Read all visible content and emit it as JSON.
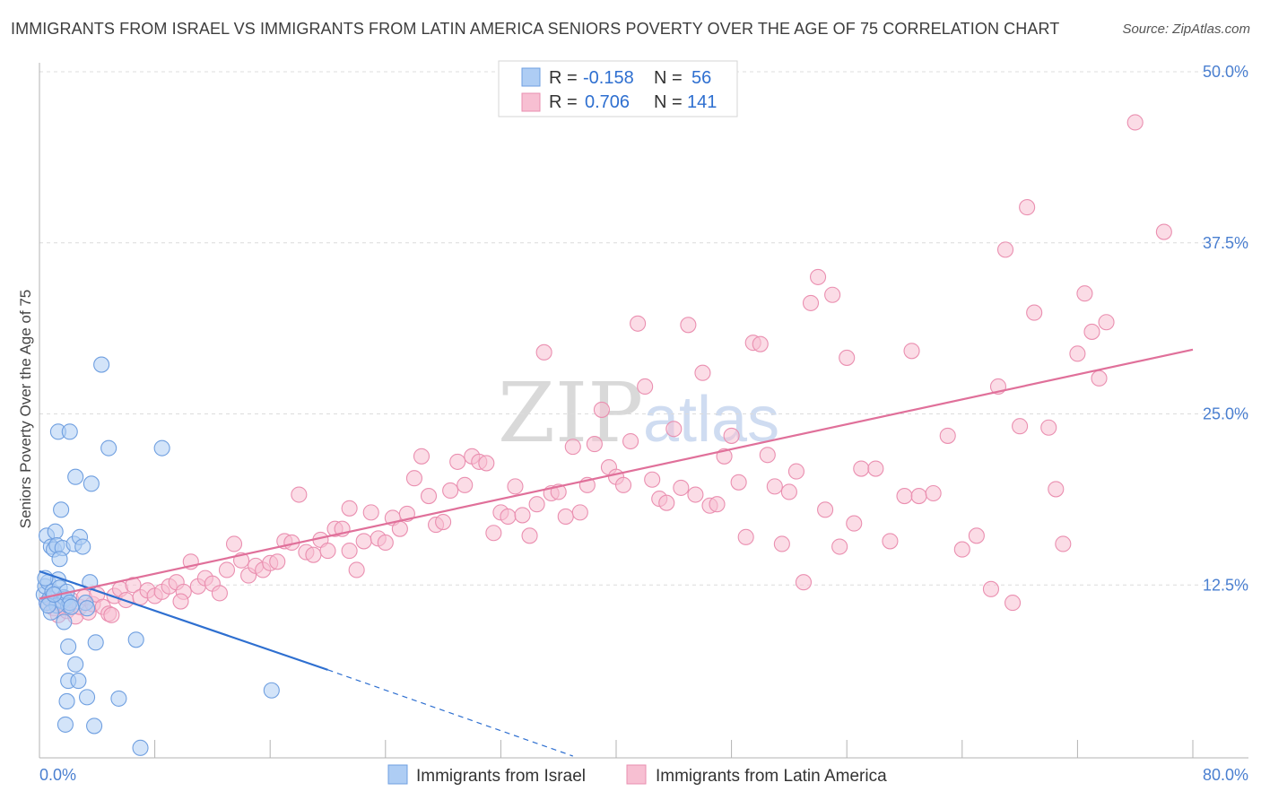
{
  "header": {
    "title": "IMMIGRANTS FROM ISRAEL VS IMMIGRANTS FROM LATIN AMERICA SENIORS POVERTY OVER THE AGE OF 75 CORRELATION CHART",
    "source": "Source: ZipAtlas.com"
  },
  "watermark": {
    "zip": "ZIP",
    "atlas": "atlas"
  },
  "legend": {
    "r_label": "R =",
    "n_label": "N =",
    "israel": {
      "r": "-0.158",
      "n": "56"
    },
    "latin": {
      "r": "0.706",
      "n": "141"
    }
  },
  "bottom_legend": {
    "israel": "Immigrants from Israel",
    "latin": "Immigrants from Latin America"
  },
  "colors": {
    "israel_fill": "#aecdf4",
    "israel_stroke": "#6f9fe0",
    "israel_line": "#2e6fd0",
    "latin_fill": "#f7bfd2",
    "latin_stroke": "#ea8fb0",
    "latin_line": "#e0709a"
  },
  "chart_data": {
    "type": "scatter",
    "title": "IMMIGRANTS FROM ISRAEL VS IMMIGRANTS FROM LATIN AMERICA SENIORS POVERTY OVER THE AGE OF 75 CORRELATION CHART",
    "xlabel": "",
    "ylabel": "Seniors Poverty Over the Age of 75",
    "xlim": [
      0,
      80
    ],
    "ylim": [
      0,
      50
    ],
    "x_tick_labels": [
      "0.0%",
      "80.0%"
    ],
    "y_ticks": [
      12.5,
      25.0,
      37.5,
      50.0
    ],
    "y_tick_labels": [
      "12.5%",
      "25.0%",
      "37.5%",
      "50.0%"
    ],
    "series": [
      {
        "name": "Immigrants from Israel",
        "r": -0.158,
        "n": 56,
        "trend": {
          "x0": 0,
          "y0": 13.5,
          "x1": 20,
          "y1": 6.3,
          "dash_to_x": 37,
          "dash_to_y": 0
        },
        "points": [
          [
            0.3,
            11.8
          ],
          [
            0.4,
            12.4
          ],
          [
            0.5,
            11.2
          ],
          [
            0.6,
            12.7
          ],
          [
            0.7,
            11.5
          ],
          [
            0.5,
            16.1
          ],
          [
            0.8,
            15.3
          ],
          [
            1.0,
            15.1
          ],
          [
            1.1,
            16.4
          ],
          [
            1.2,
            15.4
          ],
          [
            0.9,
            12.0
          ],
          [
            1.3,
            12.9
          ],
          [
            1.4,
            12.3
          ],
          [
            1.5,
            11.4
          ],
          [
            1.6,
            11.3
          ],
          [
            1.7,
            11.6
          ],
          [
            1.8,
            11.5
          ],
          [
            1.9,
            12.0
          ],
          [
            2.0,
            11.0
          ],
          [
            2.1,
            11.2
          ],
          [
            1.3,
            23.7
          ],
          [
            2.1,
            23.7
          ],
          [
            1.5,
            18.0
          ],
          [
            1.6,
            15.2
          ],
          [
            1.4,
            14.4
          ],
          [
            2.5,
            20.4
          ],
          [
            2.4,
            15.5
          ],
          [
            2.8,
            16.0
          ],
          [
            3.0,
            15.3
          ],
          [
            3.2,
            11.2
          ],
          [
            3.3,
            10.8
          ],
          [
            3.5,
            12.7
          ],
          [
            3.6,
            19.9
          ],
          [
            4.3,
            28.6
          ],
          [
            4.8,
            22.5
          ],
          [
            8.5,
            22.5
          ],
          [
            1.7,
            9.8
          ],
          [
            2.0,
            8.0
          ],
          [
            3.9,
            8.3
          ],
          [
            2.5,
            6.7
          ],
          [
            2.0,
            5.5
          ],
          [
            2.7,
            5.5
          ],
          [
            3.3,
            4.3
          ],
          [
            1.9,
            4.0
          ],
          [
            1.8,
            2.3
          ],
          [
            3.8,
            2.2
          ],
          [
            5.5,
            4.2
          ],
          [
            6.7,
            8.5
          ],
          [
            7.0,
            0.6
          ],
          [
            16.1,
            4.8
          ],
          [
            1.2,
            11.0
          ],
          [
            0.8,
            10.5
          ],
          [
            2.2,
            10.9
          ],
          [
            0.6,
            11.0
          ],
          [
            1.0,
            11.8
          ],
          [
            0.4,
            13.0
          ]
        ]
      },
      {
        "name": "Immigrants from Latin America",
        "r": 0.706,
        "n": 141,
        "trend": {
          "x0": 0,
          "y0": 11.5,
          "x1": 80,
          "y1": 29.7
        },
        "points": [
          [
            0.5,
            11.2
          ],
          [
            0.8,
            11.5
          ],
          [
            1.0,
            10.8
          ],
          [
            1.3,
            10.3
          ],
          [
            1.6,
            11.0
          ],
          [
            1.9,
            10.6
          ],
          [
            2.2,
            11.4
          ],
          [
            2.5,
            10.2
          ],
          [
            2.8,
            10.9
          ],
          [
            3.1,
            11.6
          ],
          [
            3.4,
            10.5
          ],
          [
            3.7,
            11.1
          ],
          [
            4.0,
            11.8
          ],
          [
            4.4,
            10.9
          ],
          [
            4.8,
            10.4
          ],
          [
            5.2,
            11.7
          ],
          [
            5.6,
            12.2
          ],
          [
            6.0,
            11.4
          ],
          [
            6.5,
            12.5
          ],
          [
            7.0,
            11.6
          ],
          [
            7.5,
            12.1
          ],
          [
            8.0,
            11.7
          ],
          [
            8.5,
            12.0
          ],
          [
            9.0,
            12.4
          ],
          [
            9.5,
            12.7
          ],
          [
            10.0,
            12.0
          ],
          [
            10.5,
            14.2
          ],
          [
            11.0,
            12.4
          ],
          [
            11.5,
            13.0
          ],
          [
            12.0,
            12.6
          ],
          [
            12.5,
            11.9
          ],
          [
            13.0,
            13.6
          ],
          [
            13.5,
            15.5
          ],
          [
            14.0,
            14.3
          ],
          [
            14.5,
            13.2
          ],
          [
            15.0,
            13.9
          ],
          [
            15.5,
            13.6
          ],
          [
            16.0,
            14.1
          ],
          [
            16.5,
            14.2
          ],
          [
            17.0,
            15.7
          ],
          [
            17.5,
            15.6
          ],
          [
            18.0,
            19.1
          ],
          [
            18.5,
            14.9
          ],
          [
            19.0,
            14.7
          ],
          [
            19.5,
            15.8
          ],
          [
            20.0,
            15.0
          ],
          [
            20.5,
            16.6
          ],
          [
            21.0,
            16.6
          ],
          [
            21.5,
            18.1
          ],
          [
            22.0,
            13.6
          ],
          [
            22.5,
            15.7
          ],
          [
            23.0,
            17.8
          ],
          [
            23.5,
            15.9
          ],
          [
            24.0,
            15.6
          ],
          [
            24.5,
            17.4
          ],
          [
            25.0,
            16.6
          ],
          [
            25.5,
            17.7
          ],
          [
            26.0,
            20.3
          ],
          [
            26.5,
            21.9
          ],
          [
            27.0,
            19.0
          ],
          [
            27.5,
            16.9
          ],
          [
            28.0,
            17.1
          ],
          [
            28.5,
            19.4
          ],
          [
            29.0,
            21.5
          ],
          [
            29.5,
            19.8
          ],
          [
            30.0,
            21.9
          ],
          [
            30.5,
            21.5
          ],
          [
            31.0,
            21.4
          ],
          [
            31.5,
            16.3
          ],
          [
            32.0,
            17.8
          ],
          [
            32.5,
            17.5
          ],
          [
            33.0,
            19.7
          ],
          [
            33.5,
            17.6
          ],
          [
            34.0,
            16.1
          ],
          [
            34.5,
            18.4
          ],
          [
            35.0,
            29.5
          ],
          [
            35.5,
            19.2
          ],
          [
            36.0,
            19.3
          ],
          [
            36.5,
            17.5
          ],
          [
            37.0,
            22.6
          ],
          [
            37.5,
            17.8
          ],
          [
            38.0,
            19.8
          ],
          [
            38.5,
            22.8
          ],
          [
            39.0,
            25.3
          ],
          [
            39.5,
            21.1
          ],
          [
            40.0,
            20.4
          ],
          [
            40.5,
            19.8
          ],
          [
            41.0,
            23.0
          ],
          [
            41.5,
            31.6
          ],
          [
            42.0,
            27.0
          ],
          [
            42.5,
            20.2
          ],
          [
            43.0,
            18.8
          ],
          [
            43.5,
            18.5
          ],
          [
            44.0,
            23.9
          ],
          [
            44.5,
            19.6
          ],
          [
            45.0,
            31.5
          ],
          [
            45.5,
            19.1
          ],
          [
            46.0,
            28.0
          ],
          [
            46.5,
            18.3
          ],
          [
            47.0,
            18.4
          ],
          [
            47.5,
            21.9
          ],
          [
            48.0,
            23.4
          ],
          [
            48.5,
            20.0
          ],
          [
            49.0,
            16.0
          ],
          [
            49.5,
            30.2
          ],
          [
            50.0,
            30.1
          ],
          [
            50.5,
            22.0
          ],
          [
            51.0,
            19.7
          ],
          [
            51.5,
            15.5
          ],
          [
            52.0,
            19.3
          ],
          [
            52.5,
            20.8
          ],
          [
            53.0,
            12.7
          ],
          [
            53.5,
            33.1
          ],
          [
            54.0,
            35.0
          ],
          [
            54.5,
            18.0
          ],
          [
            55.0,
            33.7
          ],
          [
            55.5,
            15.3
          ],
          [
            56.0,
            29.1
          ],
          [
            56.5,
            17.0
          ],
          [
            57.0,
            21.0
          ],
          [
            58.0,
            21.0
          ],
          [
            59.0,
            15.7
          ],
          [
            60.0,
            19.0
          ],
          [
            60.5,
            29.6
          ],
          [
            61.0,
            19.0
          ],
          [
            62.0,
            19.2
          ],
          [
            63.0,
            23.4
          ],
          [
            64.0,
            15.1
          ],
          [
            65.0,
            16.1
          ],
          [
            66.0,
            12.2
          ],
          [
            66.5,
            27.0
          ],
          [
            67.0,
            37.0
          ],
          [
            67.5,
            11.2
          ],
          [
            68.0,
            24.1
          ],
          [
            68.5,
            40.1
          ],
          [
            69.0,
            32.4
          ],
          [
            70.0,
            24.0
          ],
          [
            70.5,
            19.5
          ],
          [
            71.0,
            15.5
          ],
          [
            72.0,
            29.4
          ],
          [
            72.5,
            33.8
          ],
          [
            73.0,
            31.0
          ],
          [
            73.5,
            27.6
          ],
          [
            74.0,
            31.7
          ],
          [
            76.0,
            46.3
          ],
          [
            78.0,
            38.3
          ],
          [
            21.5,
            15.0
          ],
          [
            5.0,
            10.3
          ],
          [
            9.8,
            11.3
          ]
        ]
      }
    ]
  }
}
